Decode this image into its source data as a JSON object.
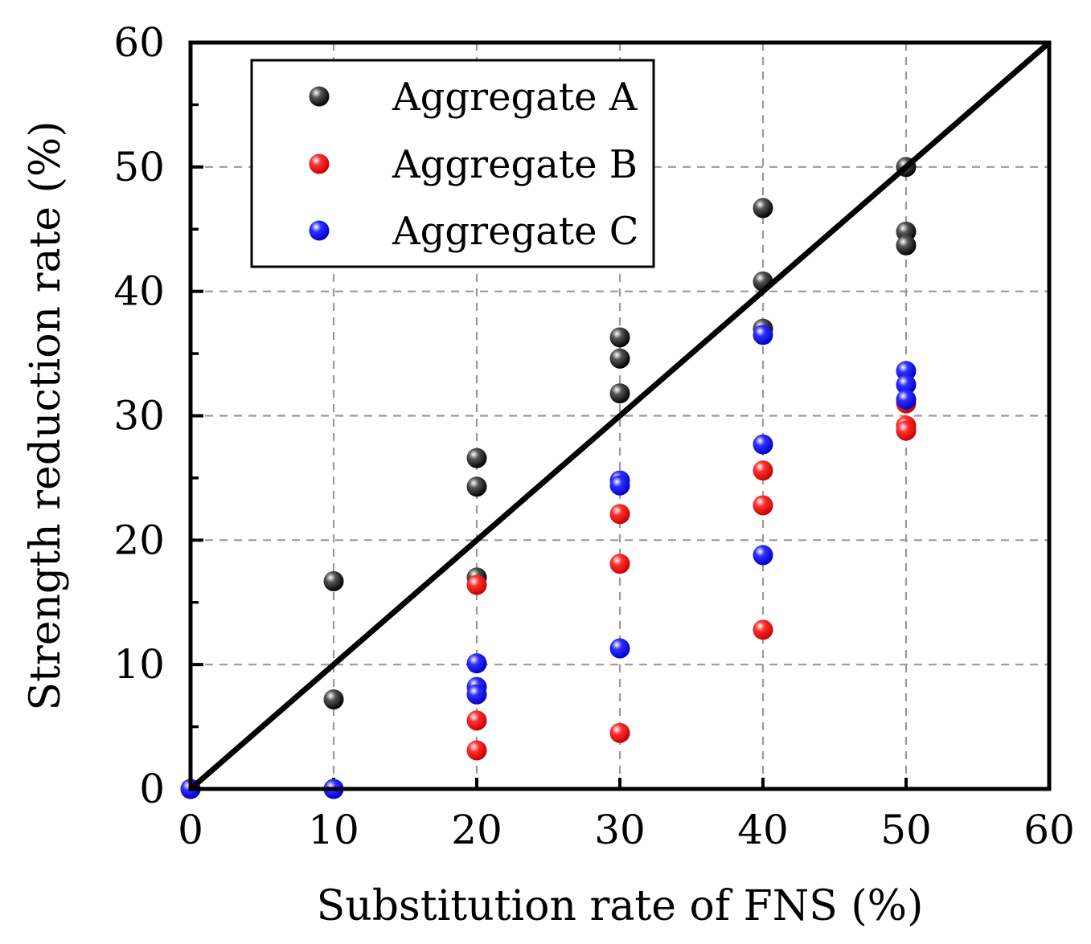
{
  "chart_data": {
    "type": "scatter",
    "title": "",
    "xlabel": "Substitution rate of FNS (%)",
    "ylabel": "Strength reduction rate (%)",
    "xlim": [
      0,
      60
    ],
    "ylim": [
      0,
      60
    ],
    "xticks": [
      "0",
      "10",
      "20",
      "30",
      "40",
      "50",
      "60"
    ],
    "yticks": [
      "0",
      "10",
      "20",
      "30",
      "40",
      "50",
      "60"
    ],
    "grid": true,
    "legend_position": "top-left",
    "reference_line": {
      "name": "y = x",
      "x": [
        0,
        60
      ],
      "y": [
        0,
        60
      ]
    },
    "series": [
      {
        "name": "Aggregate A",
        "color": "#000000",
        "points": [
          [
            0,
            0
          ],
          [
            10,
            16.7
          ],
          [
            10,
            7.2
          ],
          [
            20,
            26.6
          ],
          [
            20,
            24.3
          ],
          [
            20,
            17.0
          ],
          [
            30,
            36.3
          ],
          [
            30,
            34.6
          ],
          [
            30,
            31.8
          ],
          [
            40,
            46.7
          ],
          [
            40,
            40.8
          ],
          [
            40,
            37.0
          ],
          [
            50,
            50.0
          ],
          [
            50,
            44.8
          ],
          [
            50,
            43.7
          ]
        ]
      },
      {
        "name": "Aggregate B",
        "color": "#ff0000",
        "points": [
          [
            0,
            0
          ],
          [
            10,
            0
          ],
          [
            20,
            16.4
          ],
          [
            20,
            5.5
          ],
          [
            20,
            3.1
          ],
          [
            30,
            22.1
          ],
          [
            30,
            18.1
          ],
          [
            30,
            4.5
          ],
          [
            40,
            25.6
          ],
          [
            40,
            22.8
          ],
          [
            40,
            12.8
          ],
          [
            50,
            31.0
          ],
          [
            50,
            29.2
          ],
          [
            50,
            28.8
          ]
        ]
      },
      {
        "name": "Aggregate C",
        "color": "#0000ff",
        "points": [
          [
            0,
            0
          ],
          [
            10,
            0
          ],
          [
            20,
            10.1
          ],
          [
            20,
            8.2
          ],
          [
            20,
            7.6
          ],
          [
            30,
            24.8
          ],
          [
            30,
            24.4
          ],
          [
            30,
            11.3
          ],
          [
            40,
            36.5
          ],
          [
            40,
            27.7
          ],
          [
            40,
            18.8
          ],
          [
            50,
            33.6
          ],
          [
            50,
            32.5
          ],
          [
            50,
            31.3
          ]
        ]
      }
    ]
  }
}
